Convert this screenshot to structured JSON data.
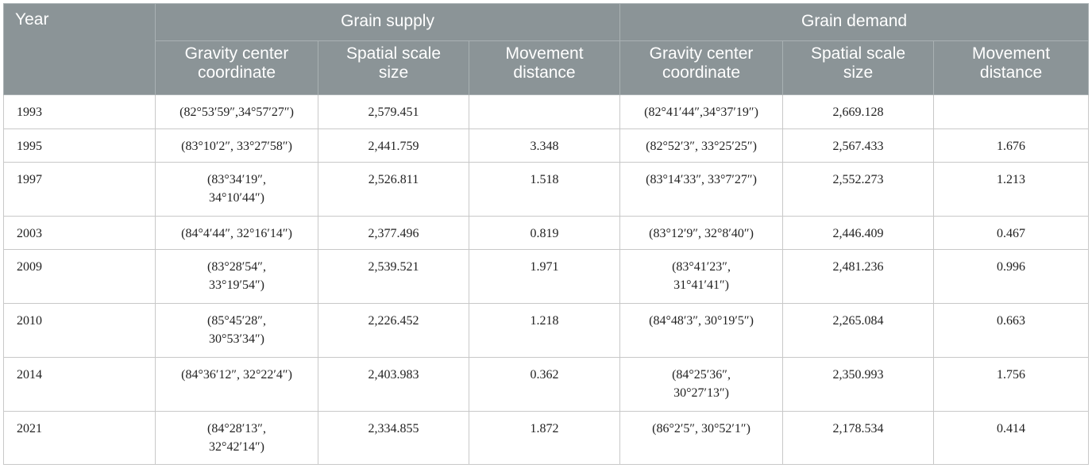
{
  "table": {
    "header": {
      "year": "Year",
      "groups": [
        "Grain supply",
        "Grain demand"
      ],
      "columns": [
        [
          "Gravity center",
          "coordinate"
        ],
        [
          "Spatial scale",
          "size"
        ],
        [
          "Movement",
          "distance"
        ],
        [
          "Gravity center",
          "coordinate"
        ],
        [
          "Spatial scale",
          "size"
        ],
        [
          "Movement",
          "distance"
        ]
      ]
    },
    "rows": [
      [
        "1993",
        [
          "(82°53′59″,34°57′27″)"
        ],
        "2,579.451",
        null,
        [
          "(82°41′44″,34°37′19″)"
        ],
        "2,669.128",
        null
      ],
      [
        "1995",
        [
          "(83°10′2″, 33°27′58″)"
        ],
        "2,441.759",
        "3.348",
        [
          "(82°52′3″, 33°25′25″)"
        ],
        "2,567.433",
        "1.676"
      ],
      [
        "1997",
        [
          "(83°34′19″,",
          "34°10′44″)"
        ],
        "2,526.811",
        "1.518",
        [
          "(83°14′33″, 33°7′27″)"
        ],
        "2,552.273",
        "1.213"
      ],
      [
        "2003",
        [
          "(84°4′44″, 32°16′14″)"
        ],
        "2,377.496",
        "0.819",
        [
          "(83°12′9″, 32°8′40″)"
        ],
        "2,446.409",
        "0.467"
      ],
      [
        "2009",
        [
          "(83°28′54″,",
          "33°19′54″)"
        ],
        "2,539.521",
        "1.971",
        [
          "(83°41′23″,",
          "31°41′41″)"
        ],
        "2,481.236",
        "0.996"
      ],
      [
        "2010",
        [
          "(85°45′28″,",
          "30°53′34″)"
        ],
        "2,226.452",
        "1.218",
        [
          "(84°48′3″, 30°19′5″)"
        ],
        "2,265.084",
        "0.663"
      ],
      [
        "2014",
        [
          "(84°36′12″, 32°22′4″)"
        ],
        "2,403.983",
        "0.362",
        [
          "(84°25′36″,",
          "30°27′13″)"
        ],
        "2,350.993",
        "1.756"
      ],
      [
        "2021",
        [
          "(84°28′13″,",
          "32°42′14″)"
        ],
        "2,334.855",
        "1.872",
        [
          "(86°2′5″, 30°52′1″)"
        ],
        "2,178.534",
        "0.414"
      ]
    ]
  }
}
